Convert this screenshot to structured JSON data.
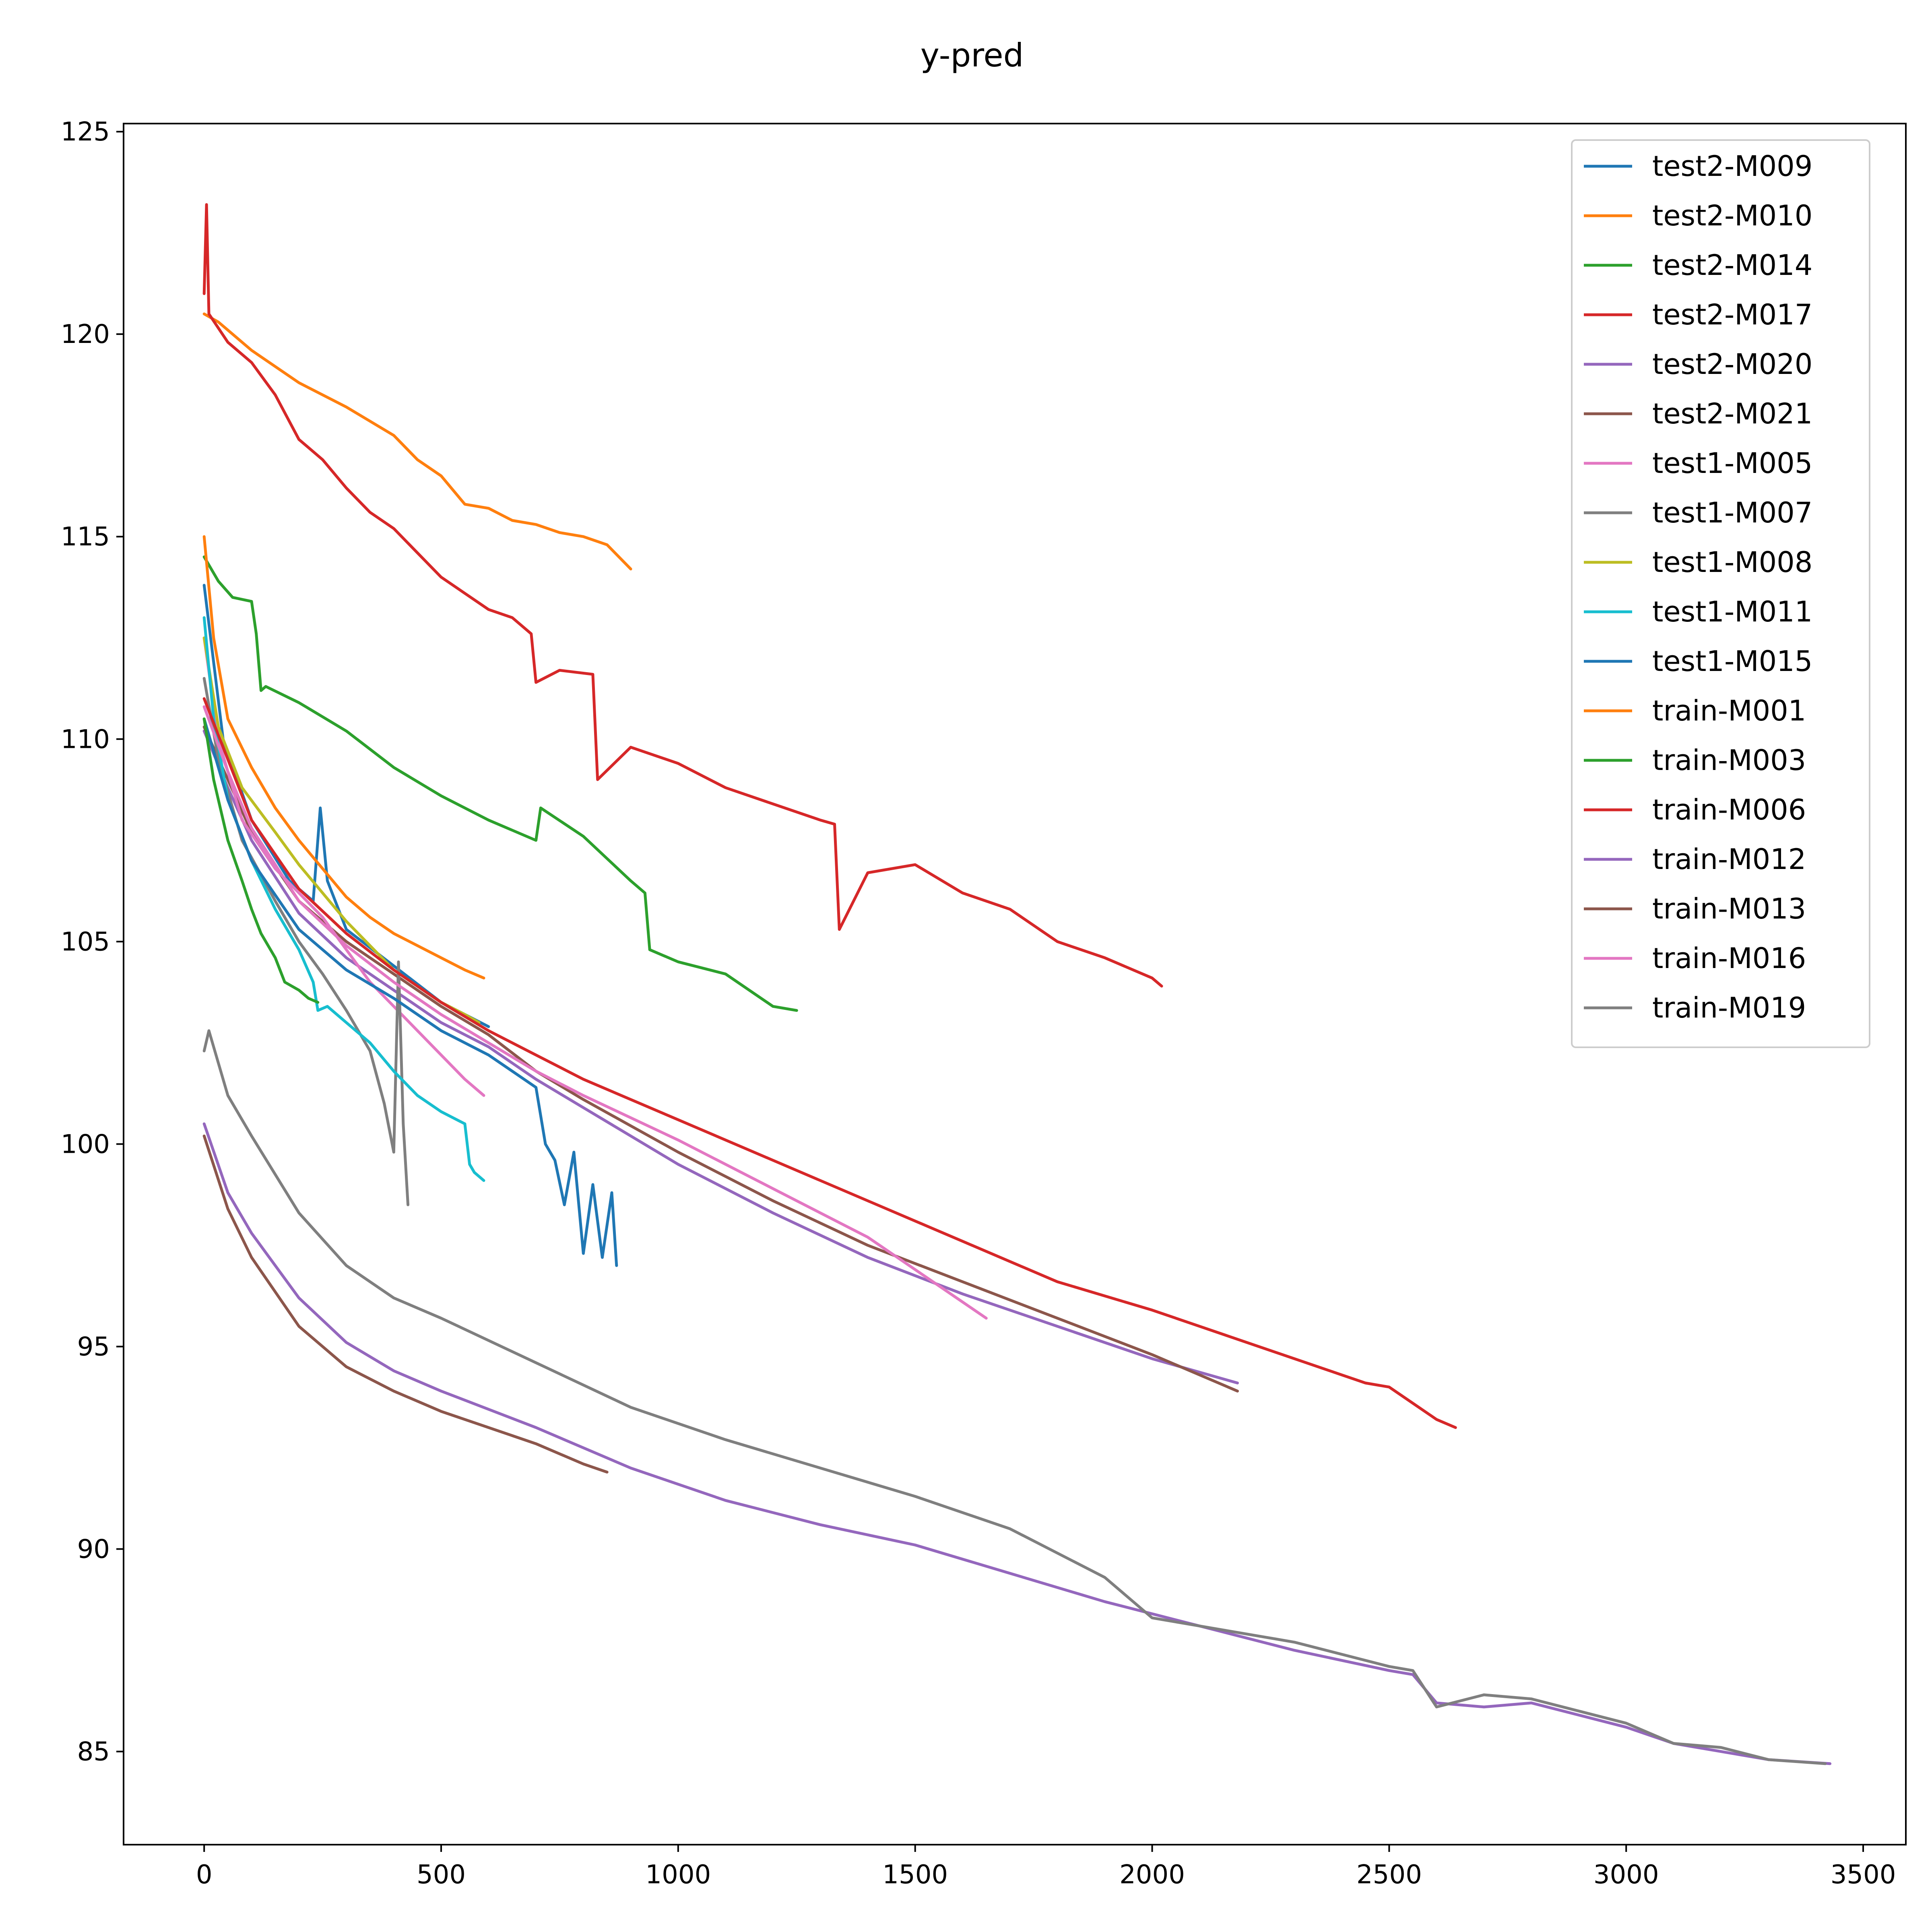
{
  "chart_data": {
    "type": "line",
    "title": "y-pred",
    "xlabel": "",
    "ylabel": "",
    "xlim": [
      -170,
      3590
    ],
    "ylim": [
      82.7,
      125.2
    ],
    "x_ticks": [
      0,
      500,
      1000,
      1500,
      2000,
      2500,
      3000,
      3500
    ],
    "y_ticks": [
      85,
      90,
      95,
      100,
      105,
      110,
      115,
      120,
      125
    ],
    "grid": false,
    "legend_position": "top-right",
    "series": [
      {
        "name": "test2-M009",
        "color": "#1f77b4",
        "x": [
          0,
          40,
          100,
          180,
          230,
          245,
          260,
          300,
          400,
          500,
          600
        ],
        "y": [
          113.8,
          110.0,
          108.0,
          106.5,
          106.0,
          108.3,
          106.5,
          105.3,
          104.4,
          103.5,
          102.9
        ]
      },
      {
        "name": "test2-M010",
        "color": "#ff7f0e",
        "x": [
          0,
          30,
          60,
          100,
          200,
          300,
          400,
          450,
          500,
          550,
          600,
          650,
          700,
          750,
          800,
          850,
          900
        ],
        "y": [
          120.5,
          120.3,
          120.0,
          119.6,
          118.8,
          118.2,
          117.5,
          116.9,
          116.5,
          115.8,
          115.7,
          115.4,
          115.3,
          115.1,
          115.0,
          114.8,
          114.2
        ]
      },
      {
        "name": "test2-M014",
        "color": "#2ca02c",
        "x": [
          0,
          30,
          60,
          100,
          110,
          120,
          130,
          200,
          300,
          400,
          500,
          600,
          700,
          710,
          800,
          900,
          930,
          940,
          1000,
          1100,
          1200,
          1250
        ],
        "y": [
          114.5,
          113.9,
          113.5,
          113.4,
          112.6,
          111.2,
          111.3,
          110.9,
          110.2,
          109.3,
          108.6,
          108.0,
          107.5,
          108.3,
          107.6,
          106.5,
          106.2,
          104.8,
          104.5,
          104.2,
          103.4,
          103.3
        ]
      },
      {
        "name": "test2-M017",
        "color": "#d62728",
        "x": [
          0,
          5,
          10,
          50,
          100,
          150,
          200,
          250,
          300,
          350,
          400,
          450,
          500,
          550,
          600,
          650,
          690,
          700,
          750,
          820,
          830,
          900,
          1000,
          1100,
          1200,
          1300,
          1330,
          1340,
          1400,
          1500,
          1600,
          1700,
          1800,
          1900,
          2000,
          2020
        ],
        "y": [
          121.0,
          123.2,
          120.5,
          119.8,
          119.3,
          118.5,
          117.4,
          116.9,
          116.2,
          115.6,
          115.2,
          114.6,
          114.0,
          113.6,
          113.2,
          113.0,
          112.6,
          111.4,
          111.7,
          111.6,
          109.0,
          109.8,
          109.4,
          108.8,
          108.4,
          108.0,
          107.9,
          105.3,
          106.7,
          106.9,
          106.2,
          105.8,
          105.0,
          104.6,
          104.1,
          103.9
        ]
      },
      {
        "name": "test2-M020",
        "color": "#9467bd",
        "x": [
          0,
          50,
          100,
          200,
          300,
          400,
          500,
          600,
          700,
          800,
          1000,
          1200,
          1400,
          1600,
          1800,
          2000,
          2180
        ],
        "y": [
          110.2,
          108.8,
          107.5,
          105.7,
          104.6,
          103.8,
          103.0,
          102.4,
          101.6,
          100.9,
          99.5,
          98.3,
          97.2,
          96.3,
          95.5,
          94.7,
          94.1
        ]
      },
      {
        "name": "test2-M021",
        "color": "#8c564b",
        "x": [
          0,
          50,
          100,
          200,
          300,
          400,
          500,
          600,
          700,
          800,
          1000,
          1200,
          1400,
          1600,
          1800,
          2000,
          2180
        ],
        "y": [
          110.3,
          109.0,
          107.7,
          106.0,
          105.0,
          104.2,
          103.4,
          102.7,
          101.8,
          101.1,
          99.8,
          98.6,
          97.5,
          96.6,
          95.7,
          94.8,
          93.9
        ]
      },
      {
        "name": "test1-M005",
        "color": "#e377c2",
        "x": [
          0,
          30,
          80,
          150,
          250,
          300,
          350,
          400,
          450,
          500,
          550,
          590
        ],
        "y": [
          112.5,
          110.0,
          108.0,
          106.8,
          105.6,
          104.8,
          104.0,
          103.4,
          102.8,
          102.2,
          101.6,
          101.2
        ]
      },
      {
        "name": "test1-M007",
        "color": "#7f7f7f",
        "x": [
          0,
          30,
          80,
          150,
          200,
          250,
          300,
          350,
          380,
          400,
          410,
          420,
          430
        ],
        "y": [
          111.5,
          109.5,
          107.5,
          106.0,
          105.0,
          104.2,
          103.3,
          102.3,
          101.0,
          99.8,
          104.5,
          100.5,
          98.5
        ]
      },
      {
        "name": "test1-M008",
        "color": "#bcbd22",
        "x": [
          0,
          30,
          80,
          150,
          200,
          250,
          300,
          350,
          400,
          450,
          500,
          550,
          580
        ],
        "y": [
          112.5,
          110.3,
          108.8,
          107.7,
          106.9,
          106.2,
          105.5,
          104.9,
          104.3,
          103.9,
          103.5,
          103.2,
          103.0
        ]
      },
      {
        "name": "test1-M011",
        "color": "#17becf",
        "x": [
          0,
          20,
          50,
          100,
          150,
          200,
          230,
          240,
          260,
          300,
          350,
          400,
          450,
          500,
          550,
          560,
          570,
          580,
          590
        ],
        "y": [
          113.0,
          110.5,
          108.5,
          107.0,
          105.8,
          104.8,
          104.0,
          103.3,
          103.4,
          103.0,
          102.5,
          101.8,
          101.2,
          100.8,
          100.5,
          99.5,
          99.3,
          99.2,
          99.1
        ]
      },
      {
        "name": "test1-M015",
        "color": "#1f77b4",
        "x": [
          0,
          50,
          100,
          200,
          300,
          400,
          500,
          600,
          650,
          700,
          720,
          740,
          760,
          780,
          800,
          820,
          840,
          860,
          870
        ],
        "y": [
          110.5,
          108.5,
          107.0,
          105.3,
          104.3,
          103.6,
          102.8,
          102.2,
          101.8,
          101.4,
          100.0,
          99.6,
          98.5,
          99.8,
          97.3,
          99.0,
          97.2,
          98.8,
          97.0
        ]
      },
      {
        "name": "train-M001",
        "color": "#ff7f0e",
        "x": [
          0,
          20,
          50,
          100,
          150,
          200,
          250,
          300,
          350,
          400,
          450,
          500,
          550,
          590
        ],
        "y": [
          115.0,
          112.5,
          110.5,
          109.3,
          108.3,
          107.5,
          106.8,
          106.1,
          105.6,
          105.2,
          104.9,
          104.6,
          104.3,
          104.1
        ]
      },
      {
        "name": "train-M003",
        "color": "#2ca02c",
        "x": [
          0,
          20,
          50,
          80,
          100,
          120,
          150,
          170,
          200,
          220,
          240
        ],
        "y": [
          110.5,
          109.0,
          107.5,
          106.5,
          105.8,
          105.2,
          104.6,
          104.0,
          103.8,
          103.6,
          103.5
        ]
      },
      {
        "name": "train-M006",
        "color": "#d62728",
        "x": [
          0,
          50,
          100,
          200,
          300,
          400,
          500,
          600,
          700,
          800,
          1000,
          1200,
          1400,
          1600,
          1800,
          2000,
          2200,
          2400,
          2450,
          2500,
          2550,
          2600,
          2640
        ],
        "y": [
          111.0,
          109.5,
          108.0,
          106.3,
          105.2,
          104.3,
          103.5,
          102.8,
          102.2,
          101.6,
          100.6,
          99.6,
          98.6,
          97.6,
          96.6,
          95.9,
          95.1,
          94.3,
          94.1,
          94.0,
          93.6,
          93.2,
          93.0
        ]
      },
      {
        "name": "train-M012",
        "color": "#9467bd",
        "x": [
          0,
          50,
          100,
          200,
          300,
          400,
          500,
          700,
          900,
          1100,
          1300,
          1500,
          1700,
          1900,
          2100,
          2300,
          2500,
          2550,
          2600,
          2700,
          2800,
          2900,
          3000,
          3100,
          3200,
          3300,
          3430
        ],
        "y": [
          100.5,
          98.8,
          97.8,
          96.2,
          95.1,
          94.4,
          93.9,
          93.0,
          92.0,
          91.2,
          90.6,
          90.1,
          89.4,
          88.7,
          88.1,
          87.5,
          87.0,
          86.9,
          86.2,
          86.1,
          86.2,
          85.9,
          85.6,
          85.2,
          85.0,
          84.8,
          84.7
        ]
      },
      {
        "name": "train-M013",
        "color": "#8c564b",
        "x": [
          0,
          50,
          100,
          200,
          300,
          400,
          500,
          600,
          700,
          800,
          850
        ],
        "y": [
          100.2,
          98.4,
          97.2,
          95.5,
          94.5,
          93.9,
          93.4,
          93.0,
          92.6,
          92.1,
          91.9
        ]
      },
      {
        "name": "train-M016",
        "color": "#e377c2",
        "x": [
          0,
          50,
          100,
          200,
          300,
          400,
          500,
          600,
          700,
          800,
          1000,
          1200,
          1400,
          1600,
          1650
        ],
        "y": [
          110.8,
          109.2,
          107.8,
          106.0,
          104.9,
          104.0,
          103.2,
          102.5,
          101.8,
          101.2,
          100.1,
          98.9,
          97.7,
          96.1,
          95.7
        ]
      },
      {
        "name": "train-M019",
        "color": "#7f7f7f",
        "x": [
          0,
          10,
          50,
          100,
          200,
          300,
          400,
          500,
          700,
          900,
          1100,
          1300,
          1500,
          1700,
          1900,
          2000,
          2100,
          2300,
          2500,
          2550,
          2600,
          2700,
          2800,
          2900,
          3000,
          3100,
          3200,
          3300,
          3420
        ],
        "y": [
          102.3,
          102.8,
          101.2,
          100.2,
          98.3,
          97.0,
          96.2,
          95.7,
          94.6,
          93.5,
          92.7,
          92.0,
          91.3,
          90.5,
          89.3,
          88.3,
          88.1,
          87.7,
          87.1,
          87.0,
          86.1,
          86.4,
          86.3,
          86.0,
          85.7,
          85.2,
          85.1,
          84.8,
          84.7
        ]
      }
    ]
  }
}
